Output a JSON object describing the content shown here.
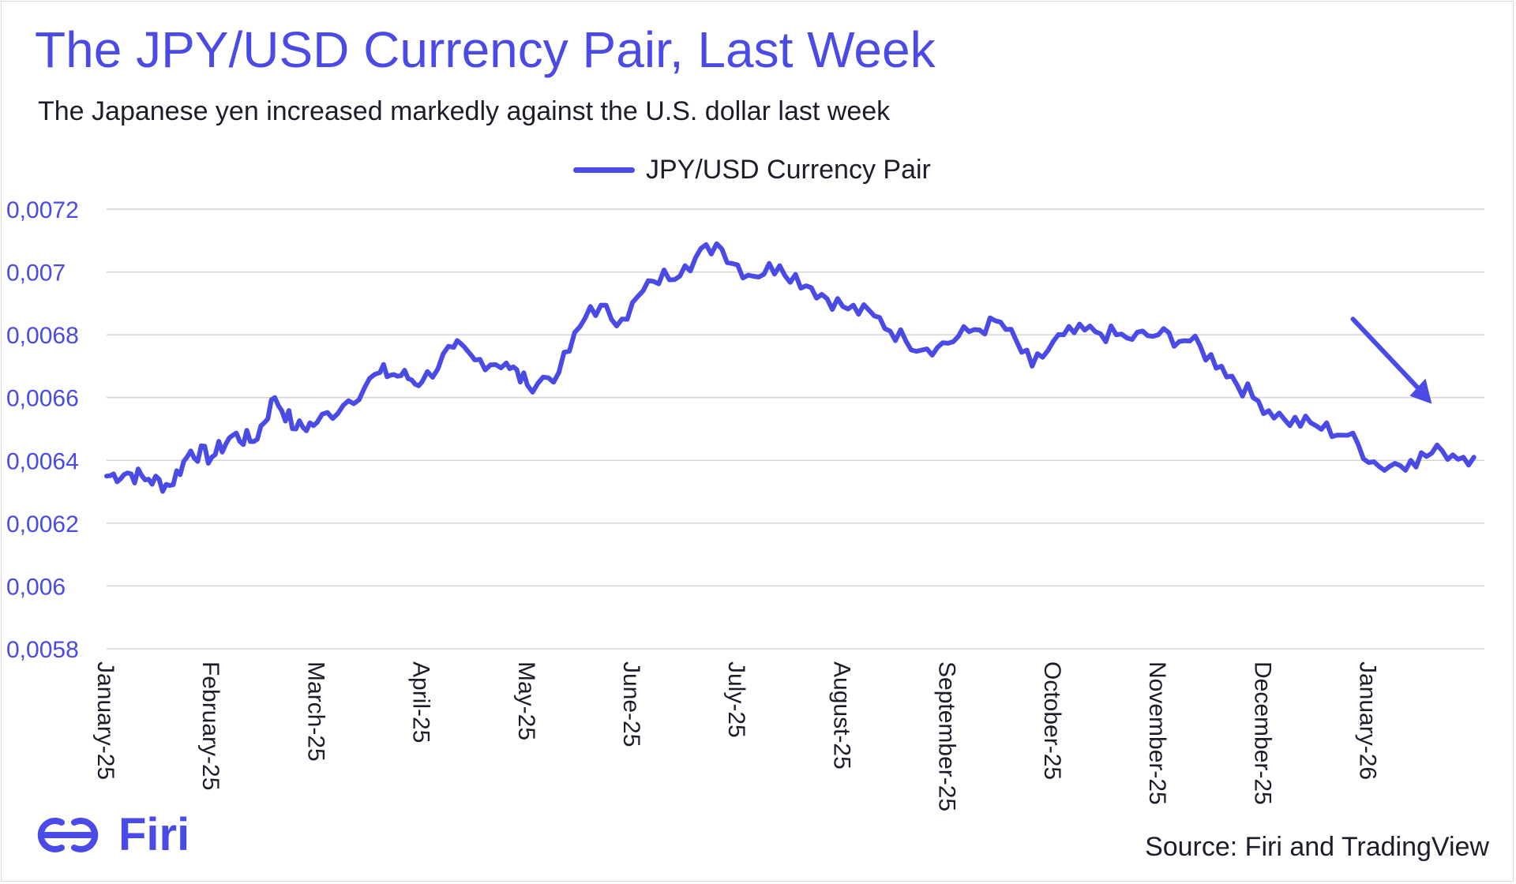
{
  "chart_data": {
    "type": "line",
    "title": "The JPY/USD Currency Pair, Last Week",
    "subtitle": "The Japanese yen increased markedly against the U.S. dollar last week",
    "xlabel": "",
    "ylabel": "",
    "ylim": [
      0.0058,
      0.0072
    ],
    "yticks": [
      "0,0058",
      "0,006",
      "0,0062",
      "0,0064",
      "0,0066",
      "0,0068",
      "0,007",
      "0,0072"
    ],
    "xticks": [
      "January-25",
      "February-25",
      "March-25",
      "April-25",
      "May-25",
      "June-25",
      "July-25",
      "August-25",
      "September-25",
      "October-25",
      "November-25",
      "December-25",
      "January-26"
    ],
    "grid": true,
    "legend_position": "top-center",
    "annotation": "arrow pointing to the late-January-26 jump",
    "series": [
      {
        "name": "JPY/USD Currency Pair",
        "color": "#4a4ae6",
        "x": [
          0,
          0.2,
          0.4,
          0.6,
          0.8,
          1.0,
          1.2,
          1.4,
          1.6,
          1.8,
          2.0,
          2.3,
          2.6,
          2.8,
          3.0,
          3.3,
          3.5,
          3.8,
          4.0,
          4.3,
          4.6,
          4.9,
          5.2,
          5.5,
          5.8,
          6.1,
          6.4,
          6.7,
          7.0,
          7.3,
          7.6,
          7.9,
          8.2,
          8.5,
          8.8,
          9.1,
          9.4,
          9.7,
          10.0,
          10.3,
          10.6,
          10.9,
          11.2,
          11.5,
          11.8,
          12.1,
          12.4,
          12.7,
          13.0
        ],
        "values": [
          0.00635,
          0.00636,
          0.00634,
          0.00632,
          0.00643,
          0.00641,
          0.00648,
          0.00646,
          0.0066,
          0.0065,
          0.00652,
          0.00659,
          0.00668,
          0.00667,
          0.00665,
          0.00676,
          0.00672,
          0.00671,
          0.00664,
          0.00668,
          0.00689,
          0.00685,
          0.00697,
          0.00702,
          0.00709,
          0.00699,
          0.00702,
          0.00695,
          0.00689,
          0.00686,
          0.00678,
          0.00676,
          0.00681,
          0.00684,
          0.0067,
          0.0068,
          0.00681,
          0.00679,
          0.0068,
          0.00678,
          0.0067,
          0.0066,
          0.00653,
          0.00651,
          0.00648,
          0.00638,
          0.0064,
          0.00643,
          0.00641
        ]
      }
    ],
    "value_note": "Values read approximately from the chart; x is months since January-25."
  },
  "source": "Source: Firi and TradingView",
  "logo": {
    "text": "Firi",
    "icon": "firi-logo-icon"
  }
}
